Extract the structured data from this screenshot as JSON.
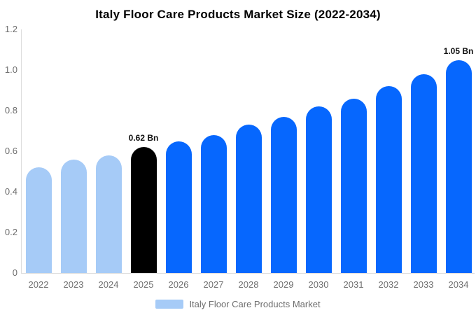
{
  "chart_data": {
    "type": "bar",
    "title": "Italy Floor Care Products Market Size (2022-2034)",
    "categories": [
      "2022",
      "2023",
      "2024",
      "2025",
      "2026",
      "2027",
      "2028",
      "2029",
      "2030",
      "2031",
      "2032",
      "2033",
      "2034"
    ],
    "values": [
      0.52,
      0.56,
      0.58,
      0.62,
      0.65,
      0.68,
      0.73,
      0.77,
      0.82,
      0.86,
      0.92,
      0.98,
      1.05
    ],
    "unit": "Bn",
    "bar_roles": [
      "historical",
      "historical",
      "historical",
      "highlight",
      "forecast",
      "forecast",
      "forecast",
      "forecast",
      "forecast",
      "forecast",
      "forecast",
      "forecast",
      "forecast"
    ],
    "data_labels": [
      {
        "category": "2025",
        "text": "0.62 Bn"
      },
      {
        "category": "2034",
        "text": "1.05 Bn"
      }
    ],
    "ylim": [
      0,
      1.2
    ],
    "yticks": [
      "0",
      "0.2",
      "0.4",
      "0.6",
      "0.8",
      "1.0",
      "1.2"
    ],
    "grid": false,
    "legend": {
      "label": "Italy Floor Care Products Market",
      "position": "bottom"
    },
    "colors": {
      "historical": "#a6cbf7",
      "highlight": "#000000",
      "forecast": "#0667fe",
      "axis_line": "#dddddd",
      "tick_text": "#6e6e6e",
      "title_text": "#000000",
      "data_label_text": "#111111"
    }
  }
}
